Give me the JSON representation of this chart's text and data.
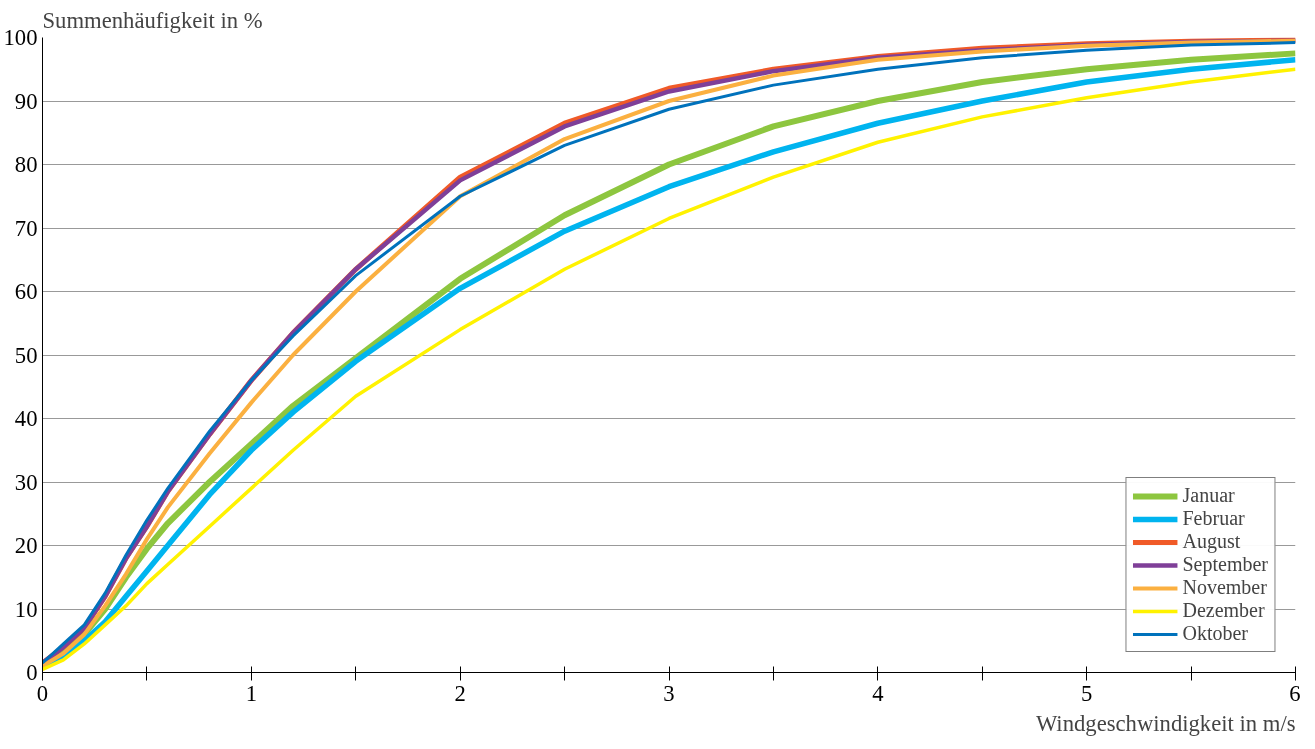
{
  "chart_data": {
    "type": "line",
    "ylabel": "Summenhäufigkeit in %",
    "xlabel": "Windgeschwindigkeit in m/s",
    "x": [
      0,
      0.1,
      0.2,
      0.3,
      0.4,
      0.5,
      0.6,
      0.8,
      1,
      1.2,
      1.5,
      2,
      2.5,
      3,
      3.5,
      4,
      4.5,
      5,
      5.5,
      6
    ],
    "series": [
      {
        "name": "Januar",
        "color": "#8dc63f",
        "values": [
          1,
          3,
          6,
          10,
          15,
          19.5,
          23.5,
          30,
          36,
          42,
          49.5,
          62,
          72,
          80,
          86,
          90,
          93,
          95,
          96.5,
          97.5
        ]
      },
      {
        "name": "Februar",
        "color": "#00b4ef",
        "values": [
          1,
          2.5,
          5,
          8,
          12,
          16,
          20,
          28,
          35,
          41,
          49,
          60.5,
          69.5,
          76.5,
          82,
          86.5,
          90,
          93,
          95,
          96.5
        ]
      },
      {
        "name": "August",
        "color": "#f05a28",
        "values": [
          1.5,
          4,
          7,
          12,
          18,
          23,
          28.5,
          37.5,
          46,
          53.5,
          63.5,
          78,
          86.5,
          92,
          95,
          97,
          98.3,
          99,
          99.4,
          99.6
        ]
      },
      {
        "name": "September",
        "color": "#7f3f98",
        "values": [
          1.5,
          4,
          7,
          12,
          18,
          23,
          28.5,
          37.5,
          46,
          53.5,
          63.5,
          77.5,
          86,
          91.5,
          94.7,
          96.8,
          98,
          98.8,
          99.3,
          99.5
        ]
      },
      {
        "name": "November",
        "color": "#fbb040",
        "values": [
          1,
          3,
          6,
          10.5,
          15.5,
          21,
          26,
          34.5,
          42.5,
          50,
          60,
          75,
          84,
          90,
          94,
          96.5,
          97.8,
          98.7,
          99.2,
          99.5
        ]
      },
      {
        "name": "Dezember",
        "color": "#fff200",
        "values": [
          0.5,
          2,
          4.5,
          7.5,
          10.5,
          14,
          17,
          23,
          29,
          35,
          43.5,
          54,
          63.5,
          71.5,
          78,
          83.5,
          87.5,
          90.5,
          93,
          95
        ]
      },
      {
        "name": "Oktober",
        "color": "#0072bc",
        "values": [
          1.5,
          4.5,
          7.5,
          12.5,
          18.5,
          24,
          29,
          38,
          46,
          53,
          62.5,
          75,
          83,
          88.7,
          92.5,
          95,
          96.8,
          98,
          98.8,
          99.2
        ]
      }
    ],
    "xlim": [
      0,
      6
    ],
    "ylim": [
      0,
      100
    ],
    "xticks": [
      0,
      {
        "value": 0.5,
        "label": null
      },
      1,
      {
        "value": 1.5,
        "label": null
      },
      2,
      {
        "value": 2.5,
        "label": null
      },
      3,
      {
        "value": 3.5,
        "label": null
      },
      4,
      {
        "value": 4.5,
        "label": null
      },
      5,
      {
        "value": 5.5,
        "label": null
      },
      6
    ],
    "yticks": [
      0,
      10,
      20,
      30,
      40,
      50,
      60,
      70,
      80,
      90,
      100
    ],
    "grid": "y",
    "legend": "bottom right",
    "marker": "none",
    "line_style": "solid"
  }
}
